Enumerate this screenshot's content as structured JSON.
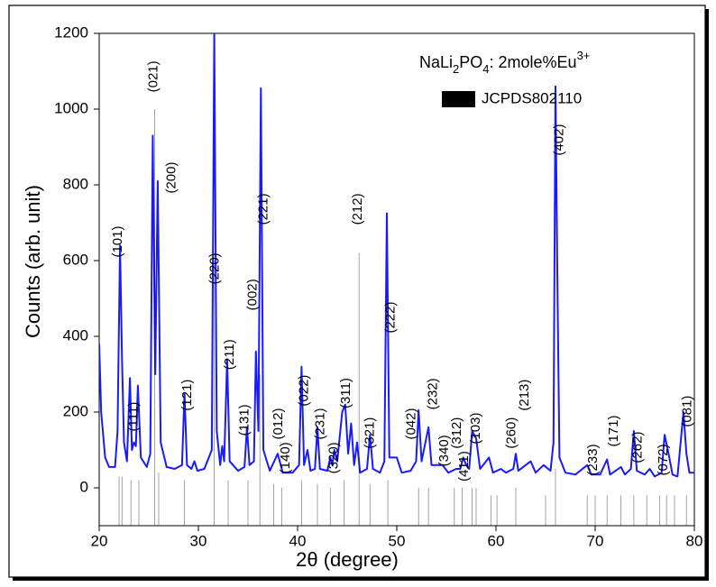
{
  "chart_data": {
    "type": "xrd",
    "xlabel": "2θ (degree)",
    "ylabel": "Counts (arb. unit)",
    "xlim": [
      20,
      80
    ],
    "xticks": [
      20,
      30,
      40,
      50,
      60,
      70,
      80
    ],
    "ylim": [
      -100,
      1200
    ],
    "yticks": [
      0,
      200,
      400,
      600,
      800,
      1000,
      1200
    ],
    "legend": "upper right",
    "legend_title": [
      {
        "text": "NaLi"
      },
      {
        "text": "2",
        "shift": "sub"
      },
      {
        "text": "PO"
      },
      {
        "text": "4",
        "shift": "sub"
      },
      {
        "text": ": 2mole%Eu"
      },
      {
        "text": "3+",
        "shift": "super"
      }
    ],
    "series": [
      {
        "kind": "line",
        "color": "#1a1aff",
        "x": [
          20,
          20.2,
          20.6,
          21.0,
          21.6,
          21.85,
          22.1,
          22.3,
          22.5,
          22.8,
          23.1,
          23.3,
          23.5,
          23.7,
          23.9,
          24.2,
          24.8,
          25.15,
          25.4,
          25.65,
          25.9,
          26.2,
          26.8,
          27.6,
          28.35,
          28.6,
          28.85,
          29.3,
          29.6,
          29.9,
          30.6,
          31.35,
          31.6,
          31.85,
          32.2,
          32.4,
          32.6,
          32.9,
          33.15,
          34.0,
          34.65,
          34.9,
          35.15,
          35.6,
          35.8,
          36.05,
          36.3,
          36.55,
          37.2,
          38.0,
          38.5,
          39.5,
          40.15,
          40.4,
          40.65,
          41.0,
          41.3,
          41.75,
          42.0,
          42.25,
          43.0,
          43.3,
          43.5,
          43.7,
          44.0,
          44.5,
          44.8,
          45.1,
          45.4,
          45.7,
          46.0,
          46.3,
          47.0,
          47.3,
          47.6,
          48.3,
          48.75,
          49.0,
          49.25,
          50.0,
          50.5,
          51.4,
          51.95,
          52.2,
          52.5,
          53.2,
          53.5,
          54.6,
          55.2,
          56.0,
          56.4,
          56.7,
          57.0,
          57.3,
          57.6,
          58.0,
          58.4,
          59.3,
          59.7,
          60.5,
          61.0,
          61.75,
          62.0,
          62.25,
          63.5,
          64.0,
          64.8,
          65.5,
          65.8,
          66.0,
          66.2,
          66.4,
          67.0,
          68.0,
          69.2,
          69.6,
          70.5,
          71.2,
          71.5,
          72.6,
          73.0,
          73.6,
          73.9,
          74.2,
          75.0,
          75.5,
          76.0,
          76.7,
          77.0,
          77.4,
          77.8,
          78.3,
          78.9,
          79.2,
          79.5,
          80.0
        ],
        "values": [
          380,
          200,
          80,
          55,
          55,
          150,
          640,
          340,
          120,
          70,
          290,
          100,
          120,
          110,
          270,
          80,
          55,
          90,
          930,
          300,
          810,
          120,
          55,
          50,
          60,
          250,
          60,
          50,
          70,
          45,
          50,
          100,
          1200,
          150,
          60,
          110,
          70,
          340,
          70,
          45,
          55,
          160,
          60,
          70,
          360,
          150,
          1055,
          100,
          45,
          90,
          40,
          40,
          60,
          320,
          60,
          100,
          45,
          50,
          160,
          50,
          45,
          80,
          60,
          100,
          70,
          200,
          220,
          90,
          170,
          60,
          120,
          40,
          50,
          140,
          50,
          40,
          70,
          725,
          80,
          80,
          40,
          45,
          70,
          205,
          70,
          160,
          60,
          60,
          40,
          50,
          50,
          80,
          60,
          50,
          150,
          130,
          50,
          80,
          40,
          50,
          40,
          50,
          90,
          45,
          70,
          40,
          60,
          45,
          120,
          1060,
          530,
          80,
          40,
          35,
          60,
          35,
          35,
          75,
          35,
          55,
          35,
          50,
          150,
          45,
          35,
          50,
          30,
          40,
          140,
          90,
          35,
          30,
          200,
          90,
          40,
          40
        ]
      },
      {
        "kind": "stick",
        "name": "JCPDS802110",
        "color": "#000000",
        "x": [
          22.0,
          22.3,
          23.2,
          24.0,
          25.6,
          26.0,
          28.6,
          31.6,
          33.0,
          35.0,
          36.2,
          37.6,
          38.4,
          40.4,
          42.0,
          43.3,
          44.7,
          46.2,
          47.3,
          49.1,
          52.2,
          53.2,
          55.8,
          56.6,
          57.6,
          58.0,
          59.5,
          60.1,
          62.0,
          65.0,
          66.0,
          69.2,
          70.0,
          71.2,
          72.6,
          73.9,
          75.2,
          76.5,
          77.2,
          78.0,
          79.2
        ],
        "values": [
          30,
          30,
          20,
          20,
          1000,
          40,
          20,
          600,
          20,
          20,
          300,
          10,
          0,
          20,
          10,
          0,
          20,
          620,
          10,
          20,
          0,
          0,
          0,
          0,
          0,
          0,
          -20,
          -20,
          0,
          -20,
          50,
          -20,
          -20,
          -20,
          -20,
          -20,
          -20,
          -20,
          -20,
          -20,
          -20
        ]
      }
    ],
    "annotations": [
      {
        "text": "(101)",
        "x": 21.9,
        "y": 650
      },
      {
        "text": "(111)",
        "x": 23.5,
        "y": 188
      },
      {
        "text": "(021)",
        "x": 25.5,
        "y": 1086
      },
      {
        "text": "(200)",
        "x": 27.3,
        "y": 819
      },
      {
        "text": "(121)",
        "x": 28.9,
        "y": 245
      },
      {
        "text": "(220)",
        "x": 31.7,
        "y": 579
      },
      {
        "text": "(211)",
        "x": 33.2,
        "y": 352
      },
      {
        "text": "(131)",
        "x": 34.7,
        "y": 179
      },
      {
        "text": "(002)",
        "x": 35.5,
        "y": 510
      },
      {
        "text": "(221)",
        "x": 36.6,
        "y": 736
      },
      {
        "text": "(012)",
        "x": 38.1,
        "y": 169
      },
      {
        "text": "(140)",
        "x": 38.8,
        "y": 79
      },
      {
        "text": "(022)",
        "x": 40.7,
        "y": 257
      },
      {
        "text": "(231)",
        "x": 42.3,
        "y": 169
      },
      {
        "text": "(320)",
        "x": 43.7,
        "y": 79
      },
      {
        "text": "(311)",
        "x": 44.9,
        "y": 250
      },
      {
        "text": "(212)",
        "x": 46.1,
        "y": 736
      },
      {
        "text": "(321)",
        "x": 47.3,
        "y": 145
      },
      {
        "text": "(222)",
        "x": 49.4,
        "y": 450
      },
      {
        "text": "(042)",
        "x": 51.5,
        "y": 169
      },
      {
        "text": "(232)",
        "x": 53.7,
        "y": 248
      },
      {
        "text": "(340)",
        "x": 54.8,
        "y": 98
      },
      {
        "text": "(312)",
        "x": 56.1,
        "y": 145
      },
      {
        "text": "(411)",
        "x": 56.8,
        "y": 57
      },
      {
        "text": "(103)",
        "x": 58.0,
        "y": 157
      },
      {
        "text": "(260)",
        "x": 61.6,
        "y": 145
      },
      {
        "text": "(213)",
        "x": 62.9,
        "y": 245
      },
      {
        "text": "(402)",
        "x": 66.4,
        "y": 919
      },
      {
        "text": "(233)",
        "x": 69.8,
        "y": 74
      },
      {
        "text": "(171)",
        "x": 71.9,
        "y": 150
      },
      {
        "text": "(262)",
        "x": 74.3,
        "y": 107
      },
      {
        "text": "(072)",
        "x": 76.9,
        "y": 74
      },
      {
        "text": "(081)",
        "x": 79.3,
        "y": 202
      }
    ]
  }
}
